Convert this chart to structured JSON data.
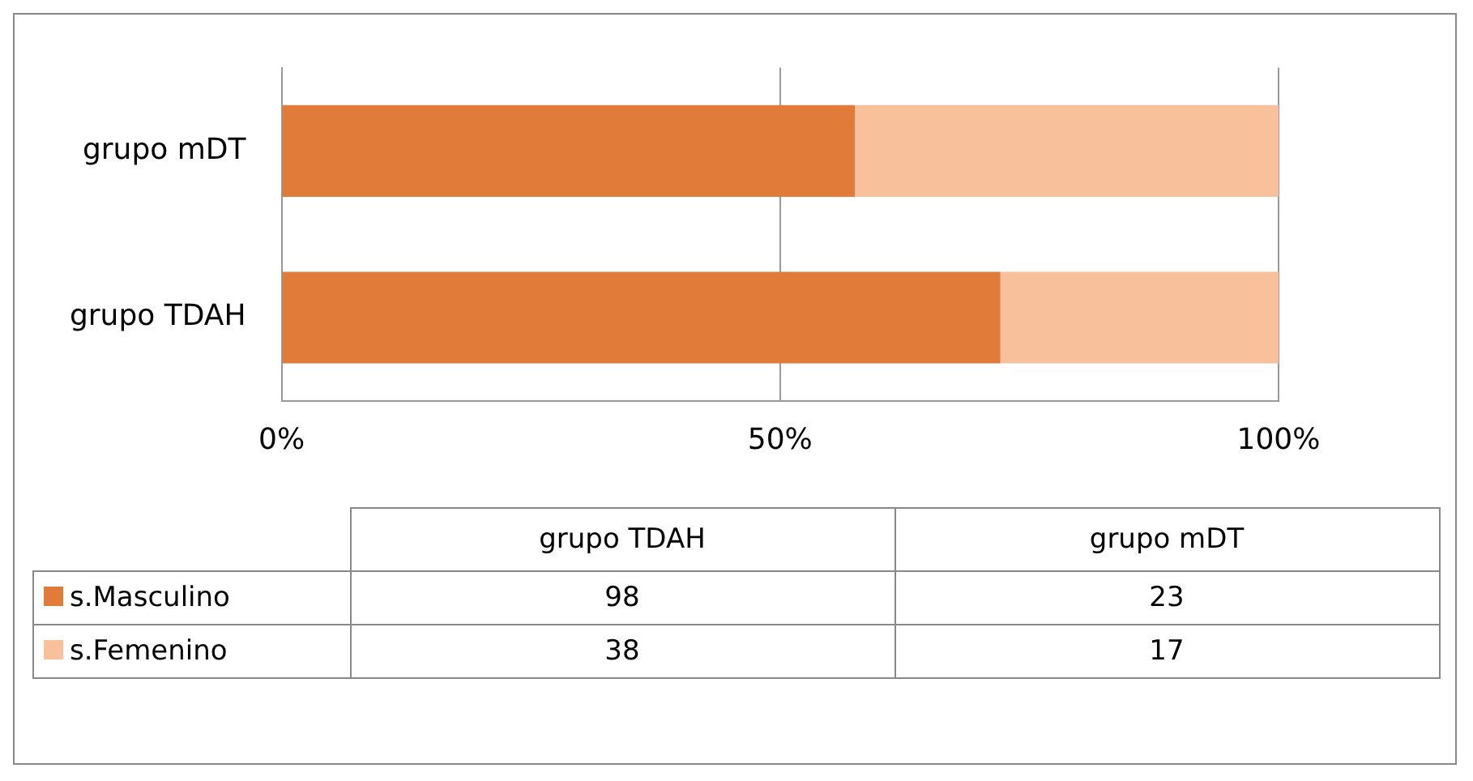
{
  "chart_data": {
    "type": "bar",
    "orientation": "horizontal",
    "stacked": true,
    "categories": [
      "grupo mDT",
      "grupo TDAH"
    ],
    "series": [
      {
        "name": "s.Masculino",
        "color": "#e07b39",
        "values": [
          57.5,
          72.1
        ]
      },
      {
        "name": "s.Femenino",
        "color": "#f8c09b",
        "values": [
          42.5,
          27.9
        ]
      }
    ],
    "annotations": [
      "98",
      "23",
      "38",
      "17"
    ],
    "xlim": [
      0,
      100
    ],
    "xticks": [
      {
        "value": 0,
        "label": "0%"
      },
      {
        "value": 50,
        "label": "50%"
      },
      {
        "value": 100,
        "label": "100%"
      }
    ],
    "grid": "x",
    "legend": "bottom"
  }
}
